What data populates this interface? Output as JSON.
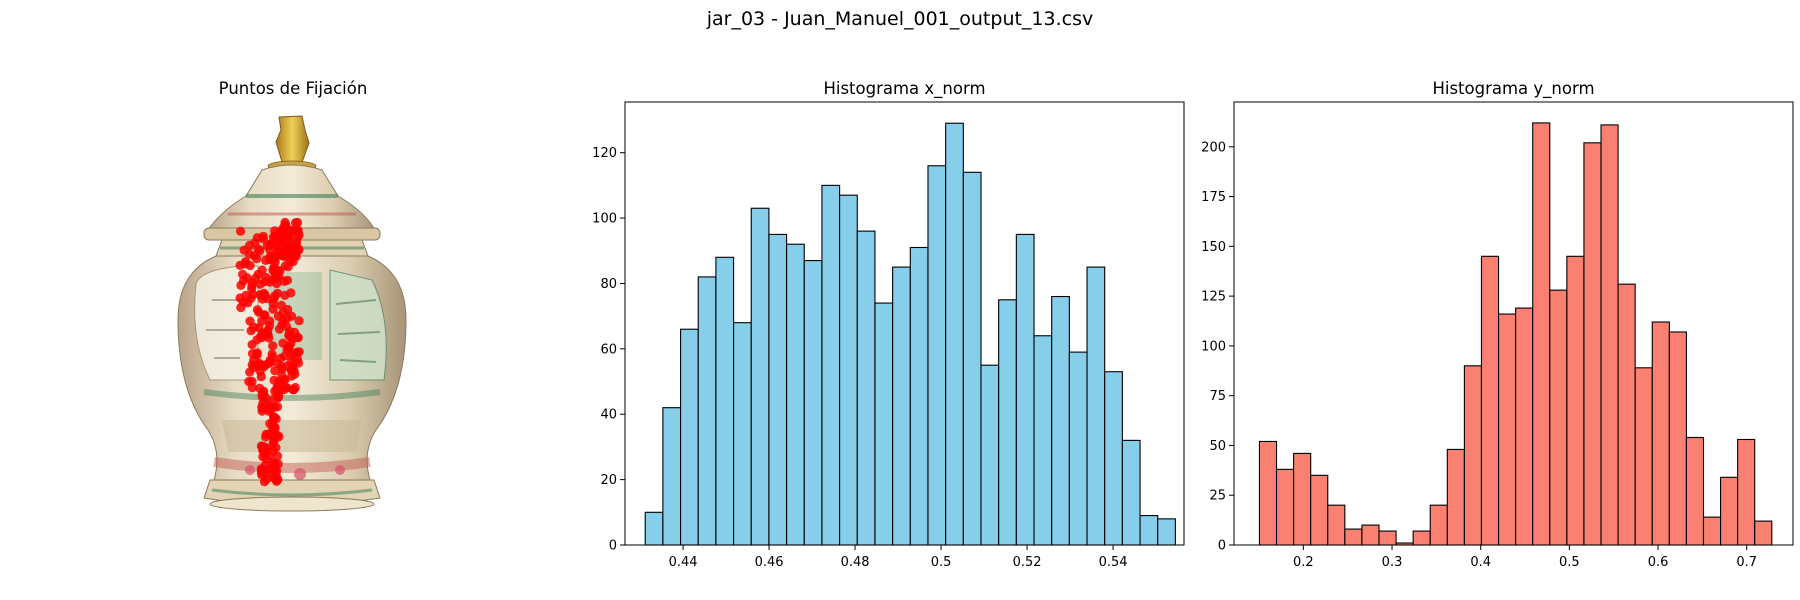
{
  "figure": {
    "suptitle": "jar_03 - Juan_Manuel_001_output_13.csv"
  },
  "image_panel": {
    "title": "Puntos de Fijación"
  },
  "colors": {
    "x_bars": "#87ceeb",
    "y_bars": "#fa8072",
    "fixation": "#ff0000",
    "edge": "#000000"
  },
  "chart_data": [
    {
      "type": "bar",
      "title": "Histograma x_norm",
      "xlabel": "",
      "ylabel": "",
      "xlim": [
        0.4265,
        0.5565
      ],
      "ylim": [
        0,
        135.5
      ],
      "xticks": [
        0.44,
        0.46,
        0.48,
        0.5,
        0.52,
        0.54
      ],
      "yticks": [
        0,
        20,
        40,
        60,
        80,
        100,
        120
      ],
      "bin_start": 0.4312,
      "bin_width": 0.00411,
      "values": [
        10,
        42,
        66,
        82,
        88,
        68,
        103,
        95,
        92,
        87,
        110,
        107,
        96,
        74,
        85,
        91,
        116,
        129,
        114,
        55,
        75,
        95,
        64,
        76,
        59,
        85,
        53,
        32,
        9,
        8
      ],
      "grid": false
    },
    {
      "type": "bar",
      "title": "Histograma y_norm",
      "xlabel": "",
      "ylabel": "",
      "xlim": [
        0.1218,
        0.7522
      ],
      "ylim": [
        0,
        222.5
      ],
      "xticks": [
        0.2,
        0.3,
        0.4,
        0.5,
        0.6,
        0.7
      ],
      "yticks": [
        0,
        25,
        50,
        75,
        100,
        125,
        150,
        175,
        200
      ],
      "bin_start": 0.1505,
      "bin_width": 0.01926,
      "values": [
        52,
        38,
        46,
        35,
        20,
        8,
        10,
        7,
        1,
        7,
        20,
        48,
        90,
        145,
        116,
        119,
        212,
        128,
        145,
        202,
        211,
        131,
        89,
        112,
        107,
        54,
        14,
        34,
        53,
        12
      ],
      "grid": false
    }
  ]
}
